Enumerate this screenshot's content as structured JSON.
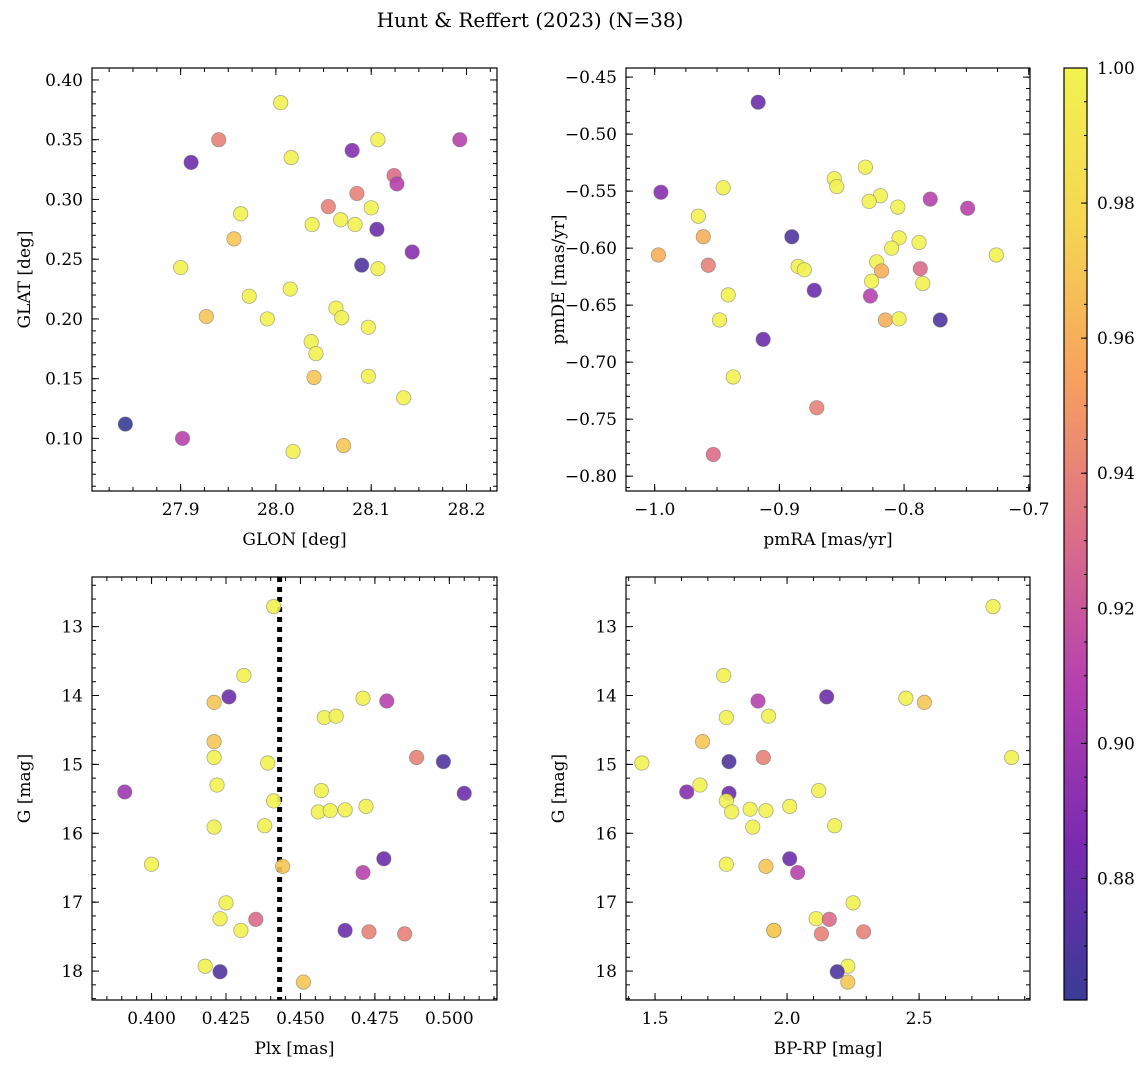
{
  "figure": {
    "title": "Hunt & Reffert (2023) (N=38)"
  },
  "colorbar": {
    "min": 0.862,
    "max": 1.0,
    "ticks": [
      0.88,
      0.9,
      0.92,
      0.94,
      0.96,
      0.98,
      1.0
    ],
    "tick_labels": [
      "0.88",
      "0.90",
      "0.92",
      "0.94",
      "0.96",
      "0.98",
      "1.00"
    ],
    "colors": [
      "#3a3b96",
      "#7a2ab0",
      "#b33fb0",
      "#dc6e88",
      "#f7a15e",
      "#f5d653",
      "#f2f250"
    ]
  },
  "chart_data": [
    {
      "type": "scatter",
      "id": "sky",
      "xlabel": "GLON [deg]",
      "ylabel": "GLAT [deg]",
      "xlim": [
        27.807,
        28.232
      ],
      "ylim": [
        0.056,
        0.41
      ],
      "y_inverted": false,
      "xticks": [
        27.9,
        28.0,
        28.1,
        28.2
      ],
      "xtick_labels": [
        "27.9",
        "28.0",
        "28.1",
        "28.2"
      ],
      "yticks": [
        0.1,
        0.15,
        0.2,
        0.25,
        0.3,
        0.35,
        0.4
      ],
      "ytick_labels": [
        "0.10",
        "0.15",
        "0.20",
        "0.25",
        "0.30",
        "0.35",
        "0.40"
      ],
      "points": [
        {
          "x": 28.005,
          "y": 0.381,
          "c": 1.0
        },
        {
          "x": 27.94,
          "y": 0.35,
          "c": 0.94
        },
        {
          "x": 28.107,
          "y": 0.35,
          "c": 1.0
        },
        {
          "x": 28.193,
          "y": 0.35,
          "c": 0.91
        },
        {
          "x": 28.08,
          "y": 0.341,
          "c": 0.89
        },
        {
          "x": 28.016,
          "y": 0.335,
          "c": 1.0
        },
        {
          "x": 27.911,
          "y": 0.331,
          "c": 0.88
        },
        {
          "x": 28.124,
          "y": 0.32,
          "c": 0.93
        },
        {
          "x": 28.127,
          "y": 0.313,
          "c": 0.91
        },
        {
          "x": 28.085,
          "y": 0.305,
          "c": 0.94
        },
        {
          "x": 28.055,
          "y": 0.294,
          "c": 0.94
        },
        {
          "x": 28.1,
          "y": 0.293,
          "c": 1.0
        },
        {
          "x": 27.963,
          "y": 0.288,
          "c": 1.0
        },
        {
          "x": 28.068,
          "y": 0.283,
          "c": 1.0
        },
        {
          "x": 28.038,
          "y": 0.279,
          "c": 1.0
        },
        {
          "x": 28.083,
          "y": 0.279,
          "c": 1.0
        },
        {
          "x": 28.106,
          "y": 0.275,
          "c": 0.88
        },
        {
          "x": 27.956,
          "y": 0.267,
          "c": 0.97
        },
        {
          "x": 28.143,
          "y": 0.256,
          "c": 0.89
        },
        {
          "x": 28.09,
          "y": 0.245,
          "c": 0.87
        },
        {
          "x": 27.9,
          "y": 0.243,
          "c": 1.0
        },
        {
          "x": 28.107,
          "y": 0.242,
          "c": 1.0
        },
        {
          "x": 28.015,
          "y": 0.225,
          "c": 1.0
        },
        {
          "x": 27.972,
          "y": 0.219,
          "c": 1.0
        },
        {
          "x": 28.063,
          "y": 0.209,
          "c": 1.0
        },
        {
          "x": 27.927,
          "y": 0.202,
          "c": 0.97
        },
        {
          "x": 28.069,
          "y": 0.201,
          "c": 1.0
        },
        {
          "x": 27.991,
          "y": 0.2,
          "c": 1.0
        },
        {
          "x": 28.097,
          "y": 0.193,
          "c": 1.0
        },
        {
          "x": 28.037,
          "y": 0.181,
          "c": 1.0
        },
        {
          "x": 28.042,
          "y": 0.171,
          "c": 1.0
        },
        {
          "x": 28.097,
          "y": 0.152,
          "c": 1.0
        },
        {
          "x": 28.04,
          "y": 0.151,
          "c": 0.97
        },
        {
          "x": 28.134,
          "y": 0.134,
          "c": 1.0
        },
        {
          "x": 27.842,
          "y": 0.112,
          "c": 0.86
        },
        {
          "x": 27.902,
          "y": 0.1,
          "c": 0.91
        },
        {
          "x": 28.071,
          "y": 0.094,
          "c": 0.97
        },
        {
          "x": 28.018,
          "y": 0.089,
          "c": 1.0
        }
      ]
    },
    {
      "type": "scatter",
      "id": "pm",
      "xlabel": "pmRA [mas/yr]",
      "ylabel": "pmDE [mas/yr]",
      "xlim": [
        -1.023,
        -0.699
      ],
      "ylim": [
        -0.813,
        -0.442
      ],
      "y_inverted": false,
      "xticks": [
        -1.0,
        -0.9,
        -0.8,
        -0.7
      ],
      "xtick_labels": [
        "−1.0",
        "−0.9",
        "−0.8",
        "−0.7"
      ],
      "yticks": [
        -0.8,
        -0.75,
        -0.7,
        -0.65,
        -0.6,
        -0.55,
        -0.5,
        -0.45
      ],
      "ytick_labels": [
        "−0.80",
        "−0.75",
        "−0.70",
        "−0.65",
        "−0.60",
        "−0.55",
        "−0.50",
        "−0.45"
      ],
      "points": [
        {
          "x": -0.917,
          "y": -0.472,
          "c": 0.88
        },
        {
          "x": -0.995,
          "y": -0.551,
          "c": 0.89
        },
        {
          "x": -0.945,
          "y": -0.547,
          "c": 1.0
        },
        {
          "x": -0.831,
          "y": -0.529,
          "c": 1.0
        },
        {
          "x": -0.856,
          "y": -0.539,
          "c": 1.0
        },
        {
          "x": -0.854,
          "y": -0.546,
          "c": 1.0
        },
        {
          "x": -0.819,
          "y": -0.554,
          "c": 1.0
        },
        {
          "x": -0.779,
          "y": -0.557,
          "c": 0.91
        },
        {
          "x": -0.828,
          "y": -0.559,
          "c": 1.0
        },
        {
          "x": -0.805,
          "y": -0.564,
          "c": 1.0
        },
        {
          "x": -0.749,
          "y": -0.565,
          "c": 0.91
        },
        {
          "x": -0.965,
          "y": -0.572,
          "c": 1.0
        },
        {
          "x": -0.961,
          "y": -0.59,
          "c": 0.96
        },
        {
          "x": -0.89,
          "y": -0.59,
          "c": 0.87
        },
        {
          "x": -0.804,
          "y": -0.591,
          "c": 1.0
        },
        {
          "x": -0.788,
          "y": -0.595,
          "c": 1.0
        },
        {
          "x": -0.81,
          "y": -0.6,
          "c": 1.0
        },
        {
          "x": -0.997,
          "y": -0.606,
          "c": 0.96
        },
        {
          "x": -0.726,
          "y": -0.606,
          "c": 1.0
        },
        {
          "x": -0.822,
          "y": -0.612,
          "c": 1.0
        },
        {
          "x": -0.957,
          "y": -0.615,
          "c": 0.94
        },
        {
          "x": -0.885,
          "y": -0.616,
          "c": 1.0
        },
        {
          "x": -0.88,
          "y": -0.619,
          "c": 1.0
        },
        {
          "x": -0.818,
          "y": -0.62,
          "c": 0.96
        },
        {
          "x": -0.787,
          "y": -0.618,
          "c": 0.93
        },
        {
          "x": -0.826,
          "y": -0.629,
          "c": 1.0
        },
        {
          "x": -0.785,
          "y": -0.631,
          "c": 1.0
        },
        {
          "x": -0.872,
          "y": -0.637,
          "c": 0.88
        },
        {
          "x": -0.941,
          "y": -0.641,
          "c": 1.0
        },
        {
          "x": -0.827,
          "y": -0.642,
          "c": 0.91
        },
        {
          "x": -0.948,
          "y": -0.663,
          "c": 1.0
        },
        {
          "x": -0.815,
          "y": -0.663,
          "c": 0.96
        },
        {
          "x": -0.804,
          "y": -0.662,
          "c": 1.0
        },
        {
          "x": -0.771,
          "y": -0.663,
          "c": 0.87
        },
        {
          "x": -0.913,
          "y": -0.68,
          "c": 0.88
        },
        {
          "x": -0.937,
          "y": -0.713,
          "c": 1.0
        },
        {
          "x": -0.87,
          "y": -0.74,
          "c": 0.94
        },
        {
          "x": -0.953,
          "y": -0.781,
          "c": 0.93
        }
      ]
    },
    {
      "type": "scatter",
      "id": "cmd_plx",
      "xlabel": "Plx [mas]",
      "ylabel": "G [mag]",
      "xlim": [
        0.38,
        0.516
      ],
      "ylim": [
        12.28,
        18.42
      ],
      "y_inverted": true,
      "vline": 0.443,
      "xticks": [
        0.4,
        0.425,
        0.45,
        0.475,
        0.5
      ],
      "xtick_labels": [
        "0.400",
        "0.425",
        "0.450",
        "0.475",
        "0.500"
      ],
      "yticks": [
        13,
        14,
        15,
        16,
        17,
        18
      ],
      "ytick_labels": [
        "13",
        "14",
        "15",
        "16",
        "17",
        "18"
      ],
      "points": [
        {
          "x": 0.441,
          "y": 12.71,
          "c": 1.0
        },
        {
          "x": 0.431,
          "y": 13.71,
          "c": 1.0
        },
        {
          "x": 0.426,
          "y": 14.02,
          "c": 0.88
        },
        {
          "x": 0.421,
          "y": 14.1,
          "c": 0.97
        },
        {
          "x": 0.471,
          "y": 14.04,
          "c": 1.0
        },
        {
          "x": 0.479,
          "y": 14.08,
          "c": 0.91
        },
        {
          "x": 0.458,
          "y": 14.32,
          "c": 1.0
        },
        {
          "x": 0.462,
          "y": 14.3,
          "c": 1.0
        },
        {
          "x": 0.421,
          "y": 14.67,
          "c": 0.97
        },
        {
          "x": 0.421,
          "y": 14.9,
          "c": 1.0
        },
        {
          "x": 0.439,
          "y": 14.98,
          "c": 1.0
        },
        {
          "x": 0.489,
          "y": 14.9,
          "c": 0.94
        },
        {
          "x": 0.498,
          "y": 14.96,
          "c": 0.87
        },
        {
          "x": 0.422,
          "y": 15.3,
          "c": 1.0
        },
        {
          "x": 0.391,
          "y": 15.4,
          "c": 0.9
        },
        {
          "x": 0.457,
          "y": 15.38,
          "c": 1.0
        },
        {
          "x": 0.505,
          "y": 15.42,
          "c": 0.88
        },
        {
          "x": 0.441,
          "y": 15.53,
          "c": 1.0
        },
        {
          "x": 0.472,
          "y": 15.61,
          "c": 1.0
        },
        {
          "x": 0.456,
          "y": 15.69,
          "c": 1.0
        },
        {
          "x": 0.46,
          "y": 15.67,
          "c": 1.0
        },
        {
          "x": 0.465,
          "y": 15.66,
          "c": 1.0
        },
        {
          "x": 0.421,
          "y": 15.91,
          "c": 1.0
        },
        {
          "x": 0.438,
          "y": 15.89,
          "c": 1.0
        },
        {
          "x": 0.4,
          "y": 16.45,
          "c": 1.0
        },
        {
          "x": 0.444,
          "y": 16.48,
          "c": 0.97
        },
        {
          "x": 0.478,
          "y": 16.37,
          "c": 0.88
        },
        {
          "x": 0.471,
          "y": 16.57,
          "c": 0.91
        },
        {
          "x": 0.425,
          "y": 17.01,
          "c": 1.0
        },
        {
          "x": 0.423,
          "y": 17.24,
          "c": 1.0
        },
        {
          "x": 0.435,
          "y": 17.25,
          "c": 0.93
        },
        {
          "x": 0.43,
          "y": 17.41,
          "c": 1.0
        },
        {
          "x": 0.465,
          "y": 17.41,
          "c": 0.88
        },
        {
          "x": 0.473,
          "y": 17.43,
          "c": 0.94
        },
        {
          "x": 0.485,
          "y": 17.46,
          "c": 0.94
        },
        {
          "x": 0.418,
          "y": 17.93,
          "c": 1.0
        },
        {
          "x": 0.423,
          "y": 18.01,
          "c": 0.87
        },
        {
          "x": 0.451,
          "y": 18.16,
          "c": 0.97
        }
      ]
    },
    {
      "type": "scatter",
      "id": "cmd_color",
      "xlabel": "BP-RP [mag]",
      "ylabel": "G [mag]",
      "xlim": [
        1.39,
        2.92
      ],
      "ylim": [
        12.28,
        18.42
      ],
      "y_inverted": true,
      "xticks": [
        1.5,
        2.0,
        2.5
      ],
      "xtick_labels": [
        "1.5",
        "2.0",
        "2.5"
      ],
      "yticks": [
        13,
        14,
        15,
        16,
        17,
        18
      ],
      "ytick_labels": [
        "13",
        "14",
        "15",
        "16",
        "17",
        "18"
      ],
      "points": [
        {
          "x": 2.78,
          "y": 12.71,
          "c": 1.0
        },
        {
          "x": 1.76,
          "y": 13.71,
          "c": 1.0
        },
        {
          "x": 2.15,
          "y": 14.02,
          "c": 0.88
        },
        {
          "x": 2.45,
          "y": 14.04,
          "c": 1.0
        },
        {
          "x": 1.89,
          "y": 14.08,
          "c": 0.91
        },
        {
          "x": 2.52,
          "y": 14.1,
          "c": 0.97
        },
        {
          "x": 1.77,
          "y": 14.32,
          "c": 1.0
        },
        {
          "x": 1.93,
          "y": 14.3,
          "c": 1.0
        },
        {
          "x": 1.68,
          "y": 14.67,
          "c": 0.97
        },
        {
          "x": 1.91,
          "y": 14.9,
          "c": 0.94
        },
        {
          "x": 2.85,
          "y": 14.9,
          "c": 1.0
        },
        {
          "x": 1.45,
          "y": 14.98,
          "c": 1.0
        },
        {
          "x": 1.78,
          "y": 14.96,
          "c": 0.87
        },
        {
          "x": 1.67,
          "y": 15.3,
          "c": 1.0
        },
        {
          "x": 2.12,
          "y": 15.38,
          "c": 1.0
        },
        {
          "x": 1.62,
          "y": 15.4,
          "c": 0.89
        },
        {
          "x": 1.78,
          "y": 15.42,
          "c": 0.88
        },
        {
          "x": 1.77,
          "y": 15.53,
          "c": 1.0
        },
        {
          "x": 2.01,
          "y": 15.61,
          "c": 1.0
        },
        {
          "x": 1.86,
          "y": 15.65,
          "c": 1.0
        },
        {
          "x": 1.92,
          "y": 15.67,
          "c": 1.0
        },
        {
          "x": 1.79,
          "y": 15.69,
          "c": 1.0
        },
        {
          "x": 1.87,
          "y": 15.91,
          "c": 1.0
        },
        {
          "x": 2.18,
          "y": 15.89,
          "c": 1.0
        },
        {
          "x": 2.01,
          "y": 16.37,
          "c": 0.88
        },
        {
          "x": 1.77,
          "y": 16.45,
          "c": 1.0
        },
        {
          "x": 1.92,
          "y": 16.48,
          "c": 0.97
        },
        {
          "x": 2.04,
          "y": 16.57,
          "c": 0.91
        },
        {
          "x": 2.25,
          "y": 17.01,
          "c": 1.0
        },
        {
          "x": 2.11,
          "y": 17.24,
          "c": 1.0
        },
        {
          "x": 2.16,
          "y": 17.25,
          "c": 0.93
        },
        {
          "x": 1.95,
          "y": 17.41,
          "c": 1.0
        },
        {
          "x": 1.95,
          "y": 17.41,
          "c": 0.97
        },
        {
          "x": 2.29,
          "y": 17.43,
          "c": 0.94
        },
        {
          "x": 2.13,
          "y": 17.46,
          "c": 0.94
        },
        {
          "x": 2.23,
          "y": 17.93,
          "c": 1.0
        },
        {
          "x": 2.19,
          "y": 18.01,
          "c": 0.87
        },
        {
          "x": 2.23,
          "y": 18.16,
          "c": 0.97
        }
      ]
    }
  ]
}
